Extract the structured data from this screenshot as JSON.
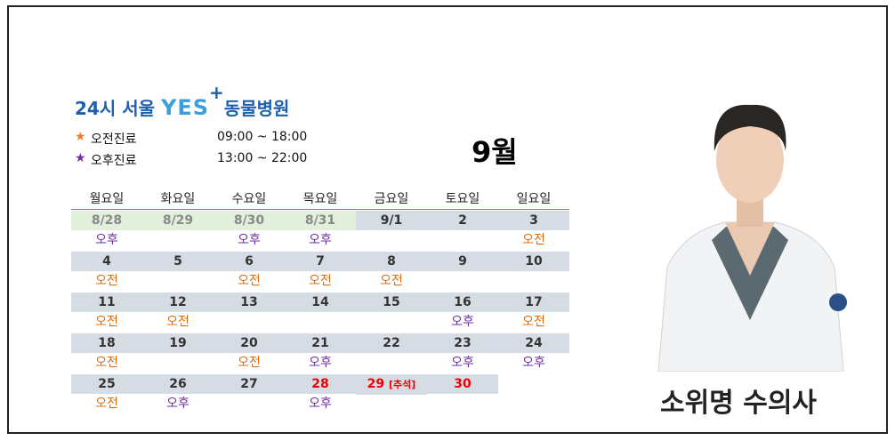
{
  "logo": {
    "prefix": "24시 서울",
    "brand": "YES",
    "plus": "+",
    "suffix": "동물병원"
  },
  "legend": [
    {
      "marker": "★",
      "label": "오전진료",
      "hours": "09:00 ~ 18:00",
      "color": "#ed7d31"
    },
    {
      "marker": "★",
      "label": "오후진료",
      "hours": "13:00 ~ 22:00",
      "color": "#7030a0"
    }
  ],
  "month": "9월",
  "calendar": {
    "weekdays": [
      "월요일",
      "화요일",
      "수요일",
      "목요일",
      "금요일",
      "토요일",
      "일요일"
    ],
    "shift_colors": {
      "오전": "#e36c09",
      "오후": "#7030a0"
    },
    "weeks": [
      {
        "dates": [
          {
            "date": "8/28",
            "past": true
          },
          {
            "date": "8/29",
            "past": true
          },
          {
            "date": "8/30",
            "past": true
          },
          {
            "date": "8/31",
            "past": true
          },
          {
            "date": "9/1"
          },
          {
            "date": "2"
          },
          {
            "date": "3"
          }
        ],
        "shifts": [
          "오후",
          null,
          "오후",
          "오후",
          null,
          null,
          "오전"
        ]
      },
      {
        "dates": [
          {
            "date": "4"
          },
          {
            "date": "5"
          },
          {
            "date": "6"
          },
          {
            "date": "7"
          },
          {
            "date": "8"
          },
          {
            "date": "9"
          },
          {
            "date": "10"
          }
        ],
        "shifts": [
          "오전",
          null,
          "오전",
          "오전",
          "오전",
          null,
          null
        ]
      },
      {
        "dates": [
          {
            "date": "11"
          },
          {
            "date": "12"
          },
          {
            "date": "13"
          },
          {
            "date": "14"
          },
          {
            "date": "15"
          },
          {
            "date": "16"
          },
          {
            "date": "17"
          }
        ],
        "shifts": [
          "오전",
          "오전",
          null,
          null,
          null,
          "오후",
          "오전"
        ]
      },
      {
        "dates": [
          {
            "date": "18"
          },
          {
            "date": "19"
          },
          {
            "date": "20"
          },
          {
            "date": "21"
          },
          {
            "date": "22"
          },
          {
            "date": "23"
          },
          {
            "date": "24"
          }
        ],
        "shifts": [
          "오전",
          null,
          "오전",
          "오후",
          null,
          "오후",
          "오후"
        ]
      },
      {
        "dates": [
          {
            "date": "25"
          },
          {
            "date": "26"
          },
          {
            "date": "27"
          },
          {
            "date": "28",
            "holiday": true
          },
          {
            "date": "29",
            "note": "[추석]",
            "holiday": true
          },
          {
            "date": "30",
            "holiday": true
          },
          null
        ],
        "shifts": [
          "오전",
          "오후",
          null,
          "오후",
          null,
          null,
          null
        ]
      }
    ]
  },
  "doctor": {
    "name": "소위명 수의사"
  }
}
